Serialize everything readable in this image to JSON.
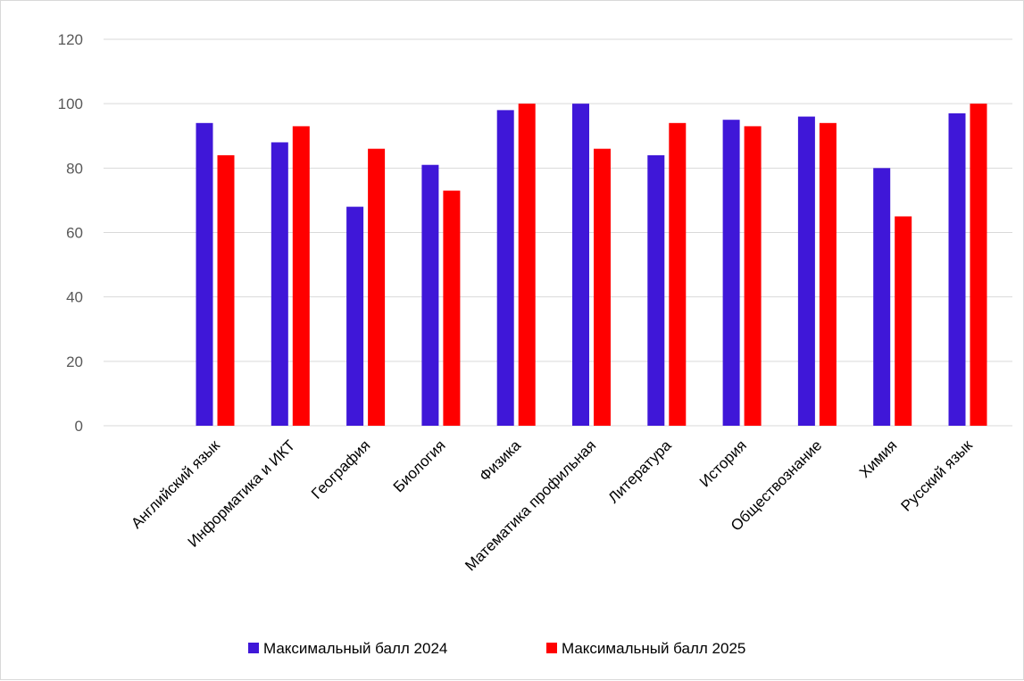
{
  "chart_data": {
    "type": "bar",
    "title": "",
    "xlabel": "",
    "ylabel": "",
    "ylim": [
      0,
      120
    ],
    "yticks": [
      0,
      20,
      40,
      60,
      80,
      100,
      120
    ],
    "grid": true,
    "legend_position": "bottom",
    "categories": [
      "Английский язык",
      "Информатика и ИКТ",
      "География",
      "Биология",
      "Физика",
      "Математика профильная",
      "Литература",
      "История",
      "Обществознание",
      "Химия",
      "Русский язык"
    ],
    "series": [
      {
        "name": "Максимальный балл 2024",
        "color": "#3f17d8",
        "values": [
          94,
          88,
          68,
          81,
          98,
          100,
          84,
          95,
          96,
          80,
          97
        ]
      },
      {
        "name": "Максимальный балл 2025",
        "color": "#ff0000",
        "values": [
          84,
          93,
          86,
          73,
          100,
          86,
          94,
          93,
          94,
          65,
          100
        ]
      }
    ]
  }
}
